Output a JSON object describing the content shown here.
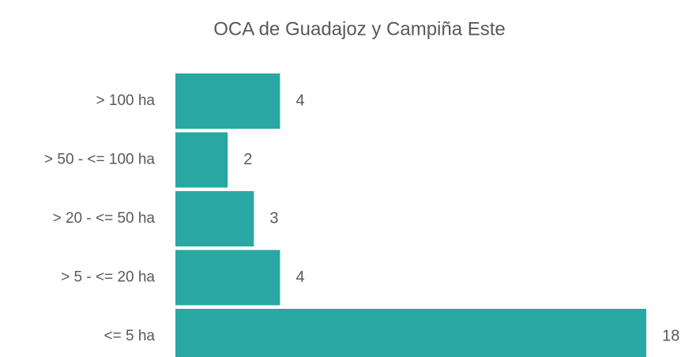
{
  "chart_data": {
    "type": "bar",
    "orientation": "horizontal",
    "title": "OCA de Guadajoz y Campiña Este",
    "categories": [
      "> 100 ha",
      "> 50 - <= 100 ha",
      "> 20 - <= 50 ha",
      "> 5 - <= 20 ha",
      "<= 5 ha"
    ],
    "values": [
      4,
      2,
      3,
      4,
      18
    ],
    "color": "#29a8a3",
    "data_labels": true
  }
}
